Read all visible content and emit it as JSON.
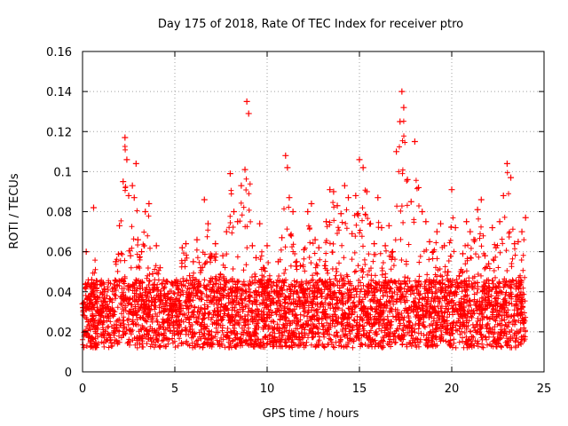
{
  "chart_data": {
    "type": "scatter",
    "title": "Day 175 of 2018, Rate Of TEC Index for receiver ptro",
    "xlabel": "GPS time / hours",
    "ylabel": "ROTI / TECUs",
    "xlim": [
      0,
      25
    ],
    "ylim": [
      0,
      0.16
    ],
    "xticks": [
      "0",
      "5",
      "10",
      "15",
      "20",
      "25"
    ],
    "yticks": [
      "0",
      "0.02",
      "0.04",
      "0.06",
      "0.08",
      "0.1",
      "0.12",
      "0.14",
      "0.16"
    ],
    "grid": true,
    "marker": "+",
    "color": "#ff0000",
    "series": [
      {
        "name": "ROTI",
        "x": [
          0.0,
          0.1,
          0.2,
          0.3,
          0.4,
          0.5,
          0.6,
          0.8,
          1.0,
          1.2,
          1.5,
          1.8,
          2.0,
          2.2,
          2.3,
          2.4,
          2.5,
          2.6,
          2.7,
          2.8,
          2.9,
          3.0,
          3.2,
          3.4,
          3.6,
          3.8,
          4.0,
          4.2,
          4.4,
          4.6,
          4.8,
          5.0,
          5.2,
          5.4,
          5.6,
          5.8,
          6.0,
          6.2,
          6.4,
          6.6,
          6.8,
          7.0,
          7.2,
          7.4,
          7.6,
          7.8,
          8.0,
          8.2,
          8.4,
          8.6,
          8.8,
          8.9,
          9.0,
          9.2,
          9.4,
          9.6,
          9.8,
          10.0,
          10.2,
          10.4,
          10.6,
          10.8,
          11.0,
          11.1,
          11.2,
          11.4,
          11.6,
          11.8,
          12.0,
          12.2,
          12.4,
          12.6,
          12.8,
          13.0,
          13.2,
          13.4,
          13.6,
          13.8,
          14.0,
          14.2,
          14.4,
          14.6,
          14.8,
          15.0,
          15.2,
          15.4,
          15.6,
          15.8,
          16.0,
          16.2,
          16.4,
          16.6,
          16.8,
          17.0,
          17.2,
          17.3,
          17.4,
          17.6,
          17.8,
          18.0,
          18.2,
          18.4,
          18.6,
          18.8,
          19.0,
          19.2,
          19.4,
          19.6,
          19.8,
          20.0,
          20.2,
          20.4,
          20.6,
          20.8,
          21.0,
          21.2,
          21.4,
          21.6,
          21.8,
          22.0,
          22.2,
          22.4,
          22.6,
          22.8,
          23.0,
          23.2,
          23.4,
          23.6,
          23.8,
          24.0
        ],
        "y": [
          0.034,
          0.028,
          0.06,
          0.025,
          0.036,
          0.046,
          0.082,
          0.031,
          0.025,
          0.04,
          0.029,
          0.055,
          0.073,
          0.095,
          0.117,
          0.106,
          0.088,
          0.058,
          0.093,
          0.087,
          0.104,
          0.066,
          0.06,
          0.08,
          0.084,
          0.049,
          0.063,
          0.052,
          0.03,
          0.045,
          0.036,
          0.033,
          0.041,
          0.062,
          0.064,
          0.048,
          0.055,
          0.066,
          0.052,
          0.086,
          0.074,
          0.058,
          0.064,
          0.046,
          0.058,
          0.07,
          0.099,
          0.08,
          0.075,
          0.093,
          0.101,
          0.135,
          0.129,
          0.063,
          0.057,
          0.074,
          0.052,
          0.063,
          0.045,
          0.04,
          0.055,
          0.067,
          0.108,
          0.102,
          0.087,
          0.08,
          0.055,
          0.053,
          0.061,
          0.08,
          0.084,
          0.066,
          0.062,
          0.045,
          0.075,
          0.091,
          0.09,
          0.083,
          0.079,
          0.093,
          0.087,
          0.069,
          0.088,
          0.106,
          0.102,
          0.09,
          0.074,
          0.064,
          0.087,
          0.072,
          0.063,
          0.073,
          0.06,
          0.11,
          0.125,
          0.14,
          0.132,
          0.096,
          0.085,
          0.115,
          0.092,
          0.08,
          0.075,
          0.065,
          0.06,
          0.07,
          0.074,
          0.063,
          0.05,
          0.091,
          0.072,
          0.048,
          0.059,
          0.075,
          0.07,
          0.066,
          0.081,
          0.086,
          0.058,
          0.054,
          0.072,
          0.062,
          0.075,
          0.088,
          0.104,
          0.097,
          0.064,
          0.065,
          0.07,
          0.077
        ]
      }
    ]
  }
}
